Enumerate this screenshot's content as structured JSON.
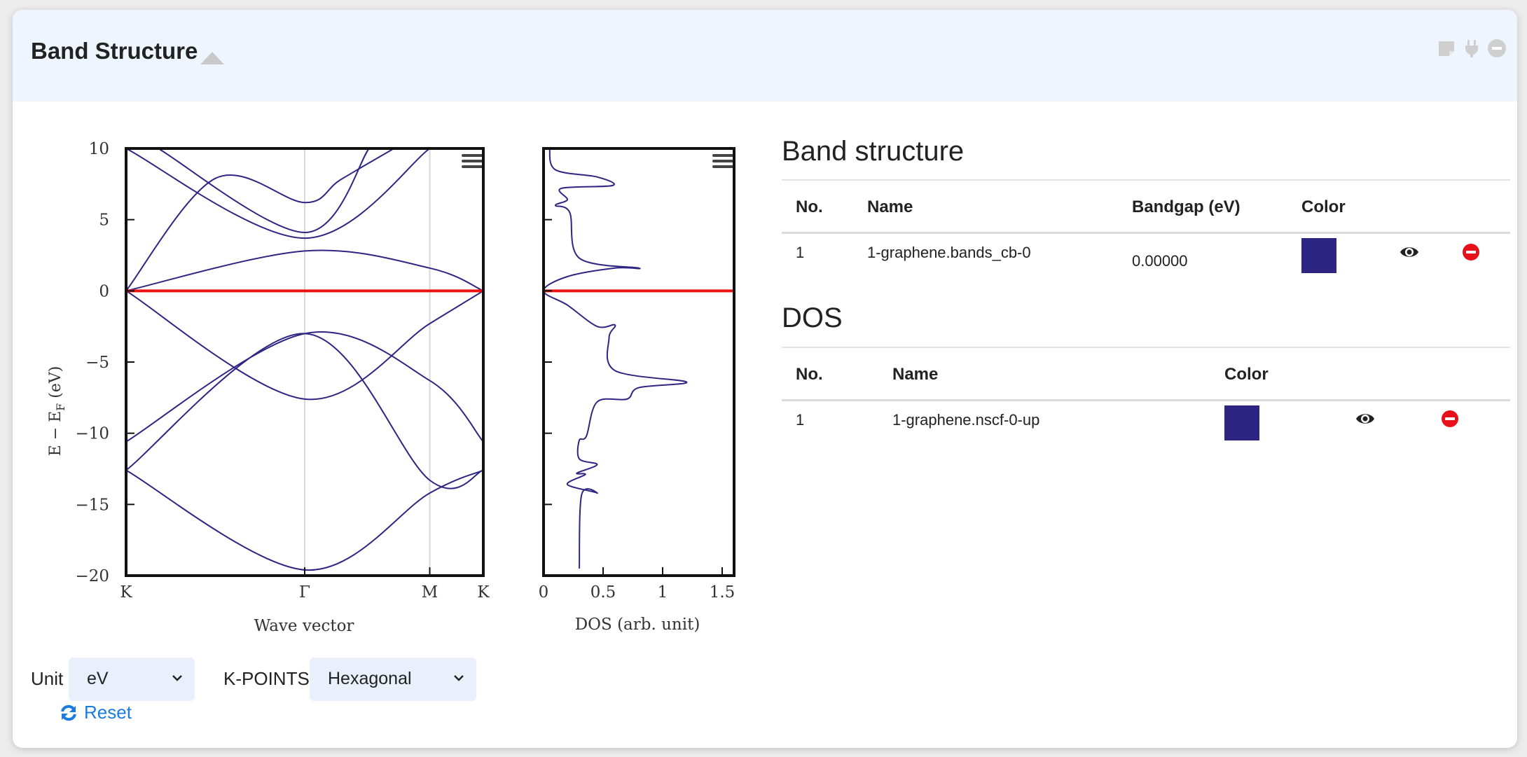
{
  "header": {
    "title": "Band Structure"
  },
  "band_plot": {
    "ylabel": "E − E",
    "ylabel_sub": "F",
    "ylabel_unit": " (eV)",
    "xlabel": "Wave vector",
    "y_ticks": [
      "10",
      "5",
      "0",
      "−5",
      "−10",
      "−15",
      "−20"
    ],
    "x_ticks": [
      "K",
      "Γ",
      "M",
      "K"
    ]
  },
  "dos_plot": {
    "xlabel": "DOS (arb. unit)",
    "x_ticks": [
      "0",
      "0.5",
      "1",
      "1.5"
    ]
  },
  "chart_data": [
    {
      "type": "line",
      "xlabel": "Wave vector",
      "ylabel": "E − EF (eV)",
      "ylim": [
        -20,
        10
      ],
      "x_ticks": [
        "K",
        "Γ",
        "M",
        "K"
      ],
      "series": [
        {
          "values": [
            [
              0,
              -12.6
            ],
            [
              0.5,
              -19.6
            ],
            [
              0.85,
              -14.2
            ],
            [
              1.0,
              -12.6
            ]
          ]
        },
        {
          "values": [
            [
              0,
              -12.6
            ],
            [
              0.5,
              -3.0
            ],
            [
              0.85,
              -13.3
            ],
            [
              1.0,
              -12.6
            ]
          ]
        },
        {
          "values": [
            [
              0,
              -10.6
            ],
            [
              0.5,
              -3.0
            ],
            [
              0.85,
              -6.3
            ],
            [
              1.0,
              -10.6
            ]
          ]
        },
        {
          "values": [
            [
              0,
              0.0
            ],
            [
              0.5,
              -7.6
            ],
            [
              0.85,
              -2.3
            ],
            [
              1.0,
              0.0
            ]
          ]
        },
        {
          "values": [
            [
              0,
              0.0
            ],
            [
              0.5,
              2.8
            ],
            [
              0.85,
              1.6
            ],
            [
              1.0,
              0.0
            ]
          ]
        },
        {
          "values": [
            [
              0,
              10
            ],
            [
              0.5,
              3.7
            ],
            [
              0.85,
              10
            ]
          ]
        },
        {
          "values": [
            [
              0.09,
              10
            ],
            [
              0.5,
              4.1
            ],
            [
              0.68,
              10
            ]
          ]
        },
        {
          "values": [
            [
              0,
              0.0
            ],
            [
              0.25,
              7.9
            ],
            [
              0.5,
              6.2
            ],
            [
              0.6,
              7.8
            ],
            [
              0.75,
              10
            ]
          ]
        }
      ],
      "reference_line": {
        "y": 0,
        "color": "#ee1111"
      }
    },
    {
      "type": "line",
      "xlabel": "DOS (arb. unit)",
      "ylim": [
        -20,
        10
      ],
      "xlim": [
        0,
        1.6
      ],
      "series": [
        {
          "values": [
            [
              0.3,
              -19.5
            ],
            [
              0.32,
              -14.3
            ],
            [
              0.45,
              -14.2
            ],
            [
              0.2,
              -13.6
            ],
            [
              0.35,
              -12.9
            ],
            [
              0.28,
              -12.8
            ],
            [
              0.45,
              -12.2
            ],
            [
              0.3,
              -11.8
            ],
            [
              0.3,
              -10.5
            ],
            [
              0.36,
              -10.2
            ],
            [
              0.45,
              -7.8
            ],
            [
              0.7,
              -7.6
            ],
            [
              0.8,
              -6.8
            ],
            [
              1.2,
              -6.4
            ],
            [
              0.6,
              -5.6
            ],
            [
              0.55,
              -3.3
            ],
            [
              0.6,
              -2.4
            ],
            [
              0.45,
              -2.5
            ],
            [
              0.2,
              -1.0
            ],
            [
              0.0,
              0.0
            ],
            [
              0.2,
              1.0
            ],
            [
              0.6,
              1.6
            ],
            [
              0.8,
              1.6
            ],
            [
              0.3,
              2.3
            ],
            [
              0.22,
              5.5
            ],
            [
              0.1,
              6.0
            ],
            [
              0.2,
              6.4
            ],
            [
              0.15,
              7.2
            ],
            [
              0.58,
              7.4
            ],
            [
              0.45,
              8.0
            ],
            [
              0.1,
              8.5
            ],
            [
              0.05,
              10.0
            ]
          ]
        }
      ],
      "reference_line": {
        "y": 0,
        "color": "#ee1111"
      }
    }
  ],
  "band_table": {
    "title": "Band structure",
    "headers": [
      "No.",
      "Name",
      "Bandgap (eV)",
      "Color"
    ],
    "rows": [
      {
        "no": "1",
        "name": "1-graphene.bands_cb-0",
        "bandgap": "0.00000",
        "color": "#2e2583"
      }
    ]
  },
  "dos_table": {
    "title": "DOS",
    "headers": [
      "No.",
      "Name",
      "Color"
    ],
    "rows": [
      {
        "no": "1",
        "name": "1-graphene.nscf-0-up",
        "color": "#2e2583"
      }
    ]
  },
  "controls": {
    "unit_label": "Unit",
    "unit_value": "eV",
    "kpoints_label": "K-POINTS",
    "kpoints_value": "Hexagonal",
    "reset_label": "Reset"
  },
  "icons": {
    "header": [
      "note-icon",
      "plug-icon",
      "minus-circle-icon"
    ],
    "row": [
      "eye-icon",
      "remove-circle-icon"
    ]
  },
  "colors": {
    "band_line": "#2e2583",
    "fermi_line": "#ee1111",
    "remove": "#e8101a",
    "link": "#1a7be0",
    "header_bg": "#eef5fe"
  }
}
